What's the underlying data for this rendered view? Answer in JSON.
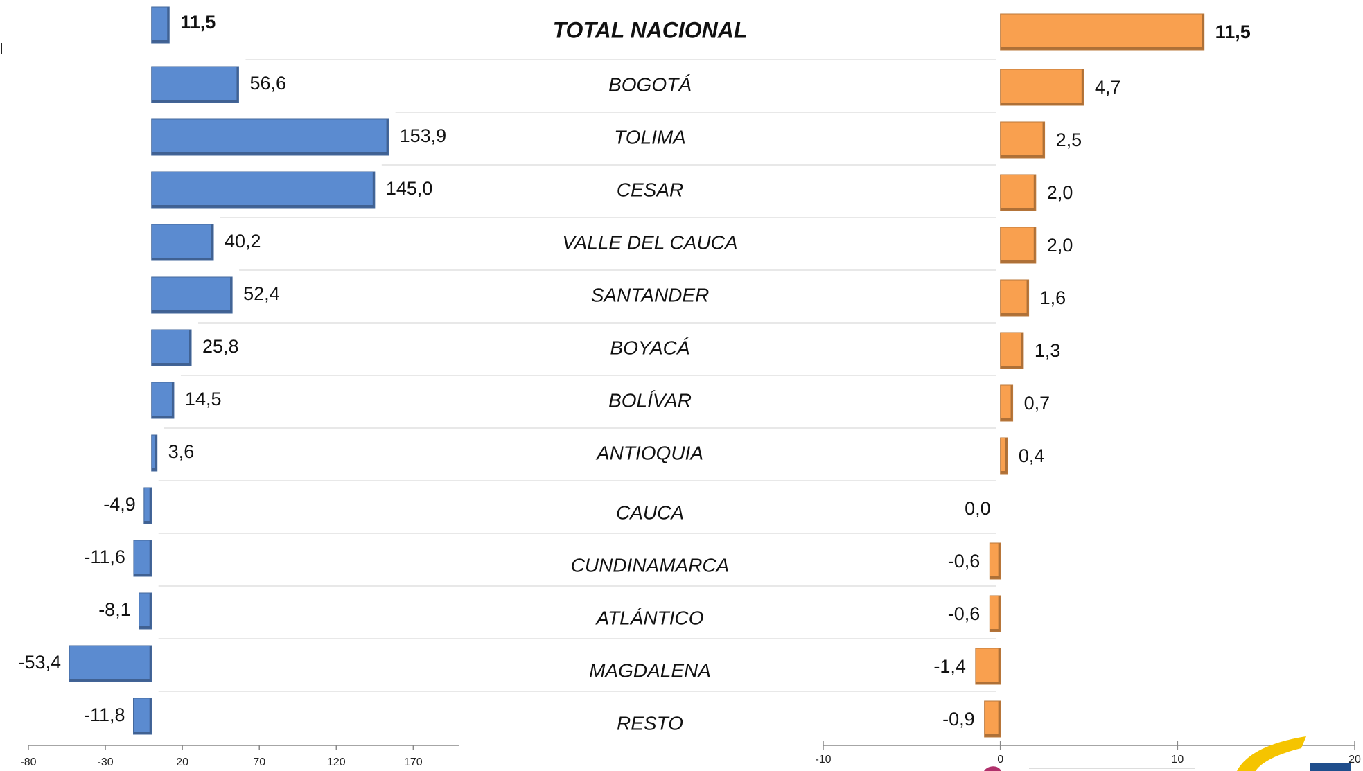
{
  "chart_data": [
    {
      "type": "bar",
      "orientation": "horizontal",
      "categories": [
        "TOTAL NACIONAL",
        "BOGOTÁ",
        "TOLIMA",
        "CESAR",
        "VALLE DEL CAUCA",
        "SANTANDER",
        "BOYACÁ",
        "BOLÍVAR",
        "ANTIOQUIA",
        "CAUCA",
        "CUNDINAMARCA",
        "ATLÁNTICO",
        "MAGDALENA",
        "RESTO"
      ],
      "values": [
        11.5,
        56.6,
        153.9,
        145.0,
        40.2,
        52.4,
        25.8,
        14.5,
        3.6,
        -4.9,
        -11.6,
        -8.1,
        -53.4,
        -11.8
      ],
      "labels": [
        "11,5",
        "56,6",
        "153,9",
        "145,0",
        "40,2",
        "52,4",
        "25,8",
        "14,5",
        "3,6",
        "-4,9",
        "-11,6",
        "-8,1",
        "-53,4",
        "-11,8"
      ],
      "xlim": [
        -80,
        200
      ],
      "ticks": [
        -80,
        -30,
        20,
        70,
        120,
        170
      ],
      "tick_labels": [
        "-80",
        "-30",
        "20",
        "70",
        "120",
        "170"
      ],
      "color": "#5B8BD0",
      "grid": false
    },
    {
      "type": "bar",
      "orientation": "horizontal",
      "categories": [
        "TOTAL NACIONAL",
        "BOGOTÁ",
        "TOLIMA",
        "CESAR",
        "VALLE DEL CAUCA",
        "SANTANDER",
        "BOYACÁ",
        "BOLÍVAR",
        "ANTIOQUIA",
        "CAUCA",
        "CUNDINAMARCA",
        "ATLÁNTICO",
        "MAGDALENA",
        "RESTO"
      ],
      "values": [
        11.5,
        4.7,
        2.5,
        2.0,
        2.0,
        1.6,
        1.3,
        0.7,
        0.4,
        0.0,
        -0.6,
        -0.6,
        -1.4,
        -0.9
      ],
      "labels": [
        "11,5",
        "4,7",
        "2,5",
        "2,0",
        "2,0",
        "1,6",
        "1,3",
        "0,7",
        "0,4",
        "0,0",
        "-0,6",
        "-0,6",
        "-1,4",
        "-0,9"
      ],
      "xlim": [
        -10,
        20
      ],
      "ticks": [
        -10,
        0,
        10,
        20
      ],
      "tick_labels": [
        "-10",
        "0",
        "10",
        "20"
      ],
      "color": "#F9A04F",
      "grid": false
    }
  ]
}
